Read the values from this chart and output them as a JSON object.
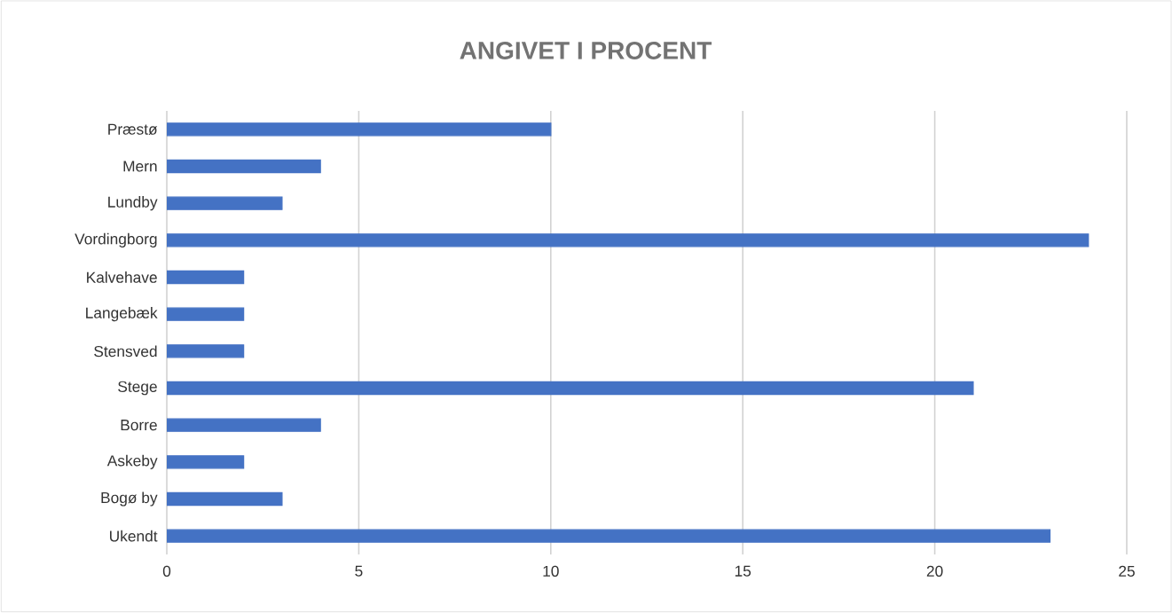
{
  "chart_data": {
    "type": "bar",
    "orientation": "horizontal",
    "title": "ANGIVET I PROCENT",
    "categories": [
      "Præstø",
      "Mern",
      "Lundby",
      "Vordingborg",
      "Kalvehave",
      "Langebæk",
      "Stensved",
      "Stege",
      "Borre",
      "Askeby",
      "Bogø by",
      "Ukendt"
    ],
    "values": [
      10,
      4,
      3,
      24,
      2,
      2,
      2,
      21,
      4,
      2,
      3,
      23
    ],
    "color": "#4472c4",
    "xlim": [
      0,
      25
    ],
    "xticks": [
      0,
      5,
      10,
      15,
      20,
      25
    ],
    "grid": "x"
  }
}
